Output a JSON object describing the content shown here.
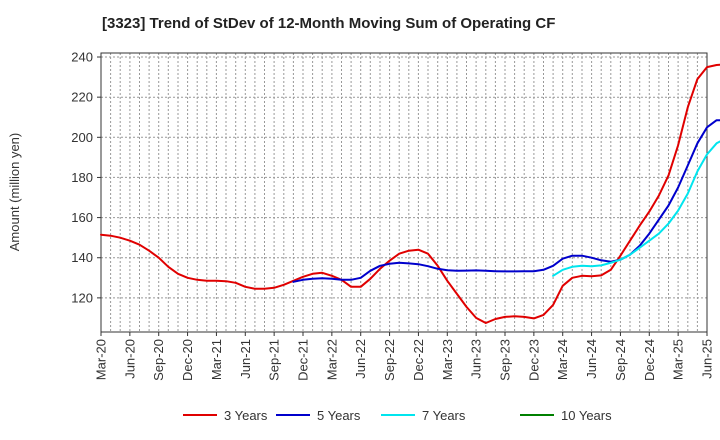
{
  "chart_data": {
    "type": "line",
    "title": "[3323]  Trend of StDev of 12-Month Moving Sum of Operating CF",
    "ylabel": "Amount (million yen)",
    "xlabel": "",
    "ylim": [
      103,
      242
    ],
    "yticks": [
      120,
      140,
      160,
      180,
      200,
      220,
      240
    ],
    "xticks": [
      "Mar-20",
      "Jun-20",
      "Sep-20",
      "Dec-20",
      "Mar-21",
      "Jun-21",
      "Sep-21",
      "Dec-21",
      "Mar-22",
      "Jun-22",
      "Sep-22",
      "Dec-22",
      "Mar-23",
      "Jun-23",
      "Sep-23",
      "Dec-23",
      "Mar-24",
      "Jun-24",
      "Sep-24",
      "Dec-24",
      "Mar-25",
      "Jun-25"
    ],
    "grid": true,
    "legend_position": "bottom",
    "x_start": "Mar-20",
    "series": [
      {
        "name": "3 Years",
        "color": "#e00000",
        "start_index": 0,
        "values": [
          151.5,
          151,
          150,
          148.5,
          146.5,
          143.5,
          140,
          135.5,
          132,
          130,
          129,
          128.5,
          128.5,
          128.3,
          127.5,
          125.5,
          124.5,
          124.5,
          125,
          126.5,
          128.5,
          130.5,
          132,
          132.5,
          131,
          129,
          125.5,
          125.5,
          129.5,
          134.5,
          138.5,
          142,
          143.5,
          144,
          142,
          136,
          128.5,
          122,
          115.5,
          110,
          107.5,
          109.5,
          110.5,
          110.8,
          110.5,
          109.8,
          111.5,
          116.5,
          126,
          130,
          131,
          130.8,
          131.2,
          134,
          141,
          148.5,
          156,
          163,
          171,
          181,
          196,
          215,
          229,
          235,
          236,
          236.3,
          236.5,
          236
        ]
      },
      {
        "name": "5 Years",
        "color": "#0000cc",
        "start_index": 20,
        "values": [
          128,
          129,
          129.5,
          129.8,
          129.5,
          129,
          129,
          130,
          133.5,
          136,
          137,
          137.5,
          137.2,
          136.8,
          135.8,
          134.5,
          133.8,
          133.5,
          133.6,
          133.7,
          133.5,
          133.3,
          133.2,
          133.2,
          133.3,
          133.3,
          134,
          136,
          139.5,
          141,
          141,
          140,
          138.7,
          138,
          139,
          141.5,
          146,
          152,
          159,
          166,
          175,
          186,
          197,
          205,
          208.5,
          208.5,
          207,
          205,
          202.5
        ]
      },
      {
        "name": "7 Years",
        "color": "#00e5ee",
        "start_index": 47,
        "values": [
          131,
          134,
          135.5,
          136,
          135.8,
          136.2,
          137.5,
          139,
          141.5,
          145,
          148.5,
          152,
          157,
          163.5,
          172,
          183,
          191.5,
          197,
          199.5,
          200.5,
          200,
          198.5
        ]
      },
      {
        "name": "10 Years",
        "color": "#008000",
        "start_index": null,
        "values": []
      }
    ]
  }
}
